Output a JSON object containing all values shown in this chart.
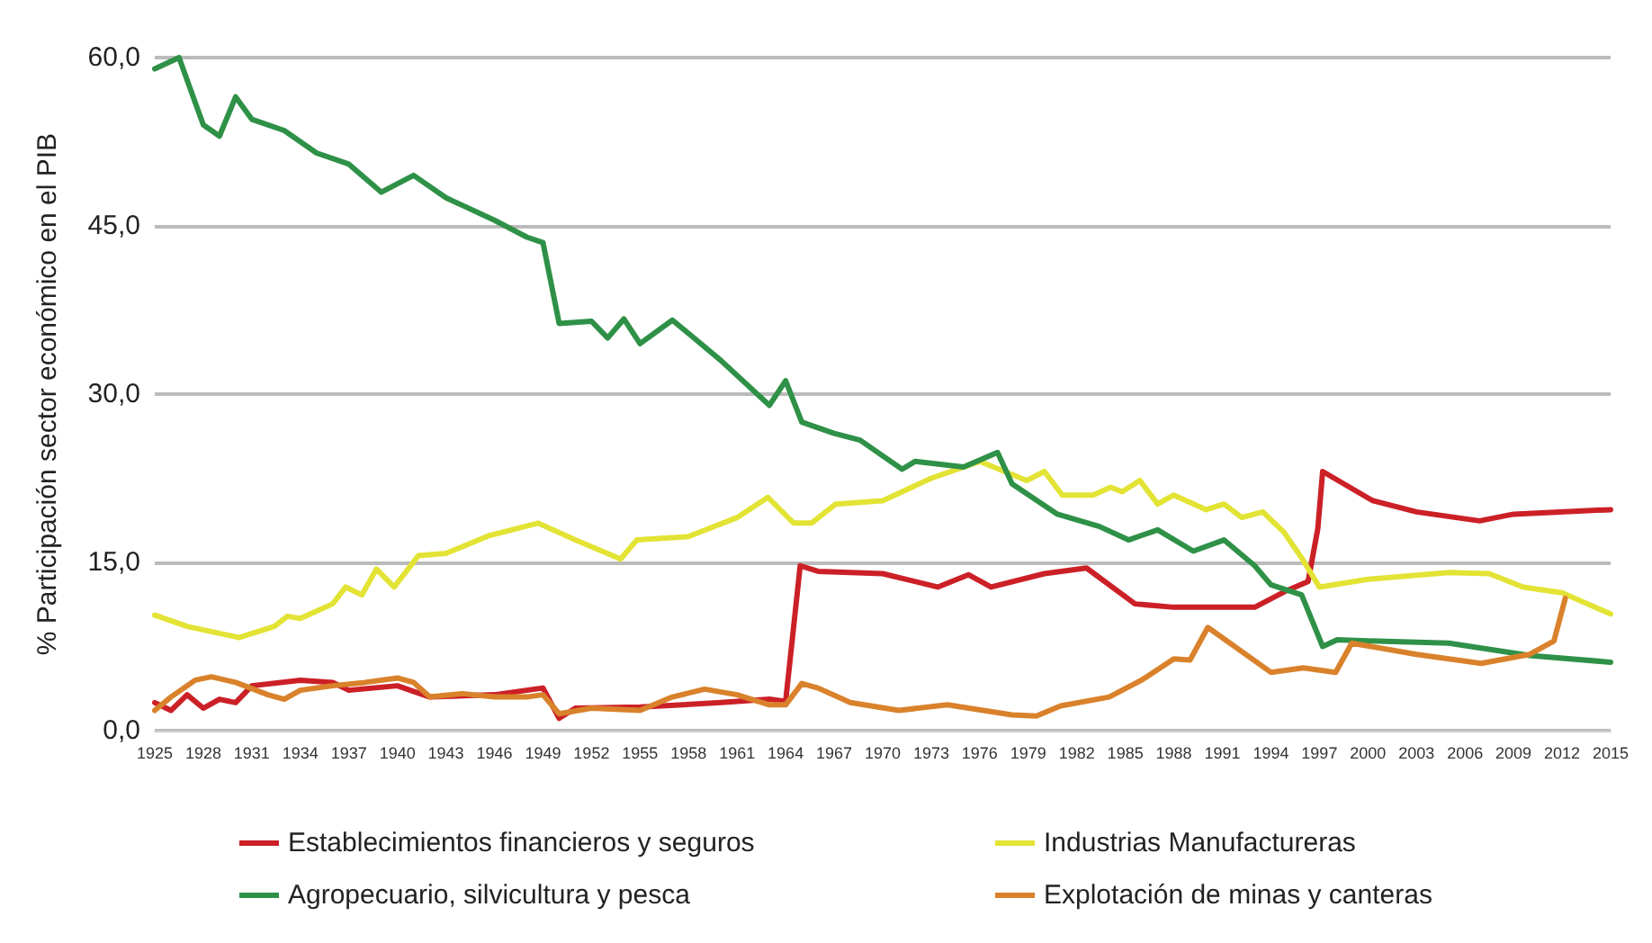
{
  "chart_data": {
    "type": "line",
    "ylabel": "% Participación sector económico en el PIB",
    "xlim": [
      1925,
      2015
    ],
    "xticks": [
      1925,
      1928,
      1931,
      1934,
      1937,
      1940,
      1943,
      1946,
      1949,
      1952,
      1955,
      1958,
      1961,
      1964,
      1967,
      1970,
      1973,
      1976,
      1979,
      1982,
      1985,
      1988,
      1991,
      1994,
      1997,
      2000,
      2003,
      2006,
      2009,
      2012,
      2015
    ],
    "ylim": [
      0,
      60
    ],
    "yticks": [
      {
        "value": 0,
        "label": "0,0"
      },
      {
        "value": 15,
        "label": "15,0"
      },
      {
        "value": 30,
        "label": "30,0"
      },
      {
        "value": 45,
        "label": "45,0"
      },
      {
        "value": 60,
        "label": "60,0"
      }
    ],
    "grid": "y",
    "legend": "bottom",
    "marker": "none",
    "line_style": "solid",
    "series": [
      {
        "name": "Establecimientos financieros y seguros",
        "color": "#cc2027",
        "x": [
          1925,
          1926,
          1927,
          1928,
          1929,
          1930,
          1931,
          1934,
          1936,
          1937,
          1940,
          1942,
          1946,
          1949,
          1950,
          1951,
          1955,
          1960,
          1963,
          1964,
          1964.9,
          1966,
          1970,
          1973.4,
          1975.3,
          1976.7,
          1980,
          1982.6,
          1985.6,
          1988,
          1993,
          1995,
          1996.3,
          1996.9,
          1997.2,
          2000.3,
          2003,
          2006.9,
          2009,
          2015
        ],
        "values": [
          2.5,
          1.8,
          3.2,
          2,
          2.8,
          2.5,
          4,
          4.5,
          4.3,
          3.6,
          4,
          3,
          3.2,
          3.8,
          1.1,
          2,
          2.1,
          2.5,
          2.8,
          2.6,
          14.7,
          14.2,
          14,
          12.8,
          13.9,
          12.8,
          14,
          14.5,
          11.3,
          11,
          11,
          12.5,
          13.3,
          18,
          23.1,
          20.5,
          19.5,
          18.7,
          19.3,
          19.7
        ]
      },
      {
        "name": "Industrias Manufactureras",
        "color": "#e3e335",
        "x": [
          1925,
          1927,
          1930.2,
          1932.4,
          1933.2,
          1934,
          1936,
          1936.8,
          1937.8,
          1938.7,
          1939.8,
          1941.3,
          1943,
          1945.7,
          1948.7,
          1951,
          1953.8,
          1954.8,
          1958,
          1961,
          1962.9,
          1964.5,
          1965.6,
          1967.1,
          1970,
          1973,
          1976,
          1978.9,
          1980,
          1981.1,
          1983,
          1984.1,
          1984.8,
          1985.9,
          1987,
          1988,
          1990,
          1991.1,
          1992.2,
          1993.5,
          1994.8,
          1995.9,
          1997,
          2000,
          2005,
          2007.5,
          2009.6,
          2012,
          2015
        ],
        "values": [
          10.3,
          9.3,
          8.3,
          9.3,
          10.2,
          10,
          11.3,
          12.8,
          12.1,
          14.4,
          12.8,
          15.6,
          15.8,
          17.4,
          18.5,
          17,
          15.3,
          17,
          17.3,
          19,
          20.8,
          18.5,
          18.5,
          20.2,
          20.5,
          22.5,
          24,
          22.3,
          23.1,
          21,
          21,
          21.7,
          21.3,
          22.3,
          20.2,
          21,
          19.7,
          20.2,
          19,
          19.5,
          17.7,
          15.4,
          12.8,
          13.5,
          14.1,
          14,
          12.8,
          12.3,
          10.4
        ]
      },
      {
        "name": "Agropecuario, silvicultura y pesca",
        "color": "#2e9147",
        "x": [
          1925,
          1926.5,
          1928,
          1929,
          1930,
          1931,
          1933,
          1935,
          1937,
          1939,
          1941,
          1943,
          1946,
          1948,
          1949,
          1950,
          1952,
          1953,
          1954,
          1955,
          1957,
          1960,
          1963,
          1964,
          1965,
          1967,
          1968.6,
          1971.2,
          1972,
          1975,
          1977.1,
          1978,
          1980.8,
          1983.4,
          1985.2,
          1987,
          1989.2,
          1991.1,
          1993,
          1994,
          1995.9,
          1997.2,
          1998.1,
          2000,
          2005,
          2010,
          2015
        ],
        "values": [
          59,
          60,
          54,
          53,
          56.5,
          54.5,
          53.5,
          51.5,
          50.5,
          48,
          49.5,
          47.5,
          45.5,
          44,
          43.5,
          36.3,
          36.5,
          35,
          36.7,
          34.5,
          36.6,
          33,
          29,
          31.2,
          27.5,
          26.5,
          25.9,
          23.3,
          24,
          23.5,
          24.8,
          22,
          19.3,
          18.2,
          17,
          17.9,
          16,
          17,
          14.7,
          13,
          12.1,
          7.5,
          8.1,
          8,
          7.8,
          6.7,
          6.1
        ]
      },
      {
        "name": "Explotación de minas y canteras",
        "color": "#d9822b",
        "x": [
          1925,
          1926,
          1927.5,
          1928.5,
          1930,
          1932,
          1933,
          1934,
          1936,
          1938,
          1940,
          1941,
          1942,
          1944,
          1946,
          1948,
          1949,
          1950,
          1952,
          1955,
          1957,
          1959,
          1961,
          1963,
          1964,
          1965,
          1966,
          1968,
          1971,
          1974,
          1978,
          1979.5,
          1981,
          1984,
          1986,
          1988,
          1989,
          1990.1,
          1994,
          1996,
          1998,
          1999,
          2003,
          2007,
          2010,
          2011.5,
          2012.2
        ],
        "values": [
          1.8,
          3,
          4.5,
          4.8,
          4.3,
          3.2,
          2.8,
          3.6,
          4,
          4.3,
          4.7,
          4.3,
          3,
          3.3,
          3,
          3,
          3.2,
          1.5,
          2,
          1.8,
          3,
          3.7,
          3.2,
          2.3,
          2.3,
          4.2,
          3.8,
          2.5,
          1.8,
          2.3,
          1.4,
          1.3,
          2.2,
          3,
          4.5,
          6.4,
          6.3,
          9.2,
          5.2,
          5.6,
          5.2,
          7.8,
          6.8,
          6,
          6.8,
          8,
          11.8
        ]
      }
    ]
  }
}
